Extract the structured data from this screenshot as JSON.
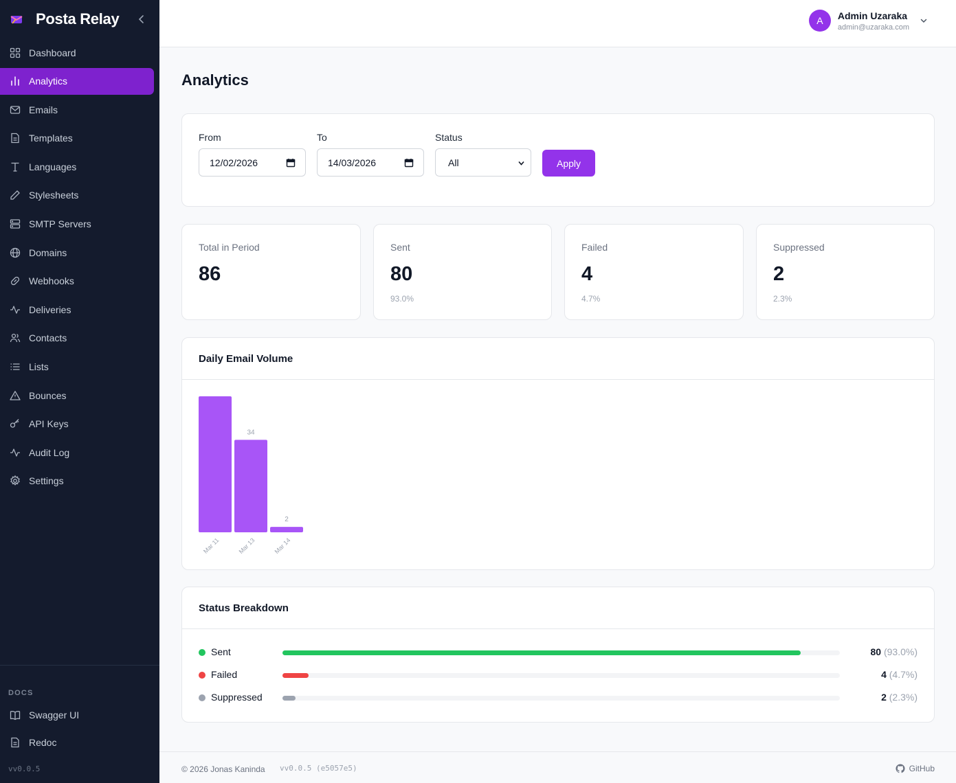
{
  "brand": {
    "name": "Posta Relay"
  },
  "sidebar": {
    "items": [
      {
        "label": "Dashboard",
        "icon": "grid-icon"
      },
      {
        "label": "Analytics",
        "icon": "bar-chart-icon",
        "active": true
      },
      {
        "label": "Emails",
        "icon": "mail-icon"
      },
      {
        "label": "Templates",
        "icon": "file-text-icon"
      },
      {
        "label": "Languages",
        "icon": "type-icon"
      },
      {
        "label": "Stylesheets",
        "icon": "pencil-icon"
      },
      {
        "label": "SMTP Servers",
        "icon": "server-icon"
      },
      {
        "label": "Domains",
        "icon": "globe-icon"
      },
      {
        "label": "Webhooks",
        "icon": "link-icon"
      },
      {
        "label": "Deliveries",
        "icon": "activity-icon"
      },
      {
        "label": "Contacts",
        "icon": "users-icon"
      },
      {
        "label": "Lists",
        "icon": "list-icon"
      },
      {
        "label": "Bounces",
        "icon": "alert-triangle-icon"
      },
      {
        "label": "API Keys",
        "icon": "key-icon"
      },
      {
        "label": "Audit Log",
        "icon": "activity-icon"
      },
      {
        "label": "Settings",
        "icon": "gear-icon"
      }
    ],
    "docs_label": "DOCS",
    "docs_items": [
      {
        "label": "Swagger UI",
        "icon": "book-open-icon"
      },
      {
        "label": "Redoc",
        "icon": "file-text-icon"
      }
    ],
    "version": "vv0.0.5"
  },
  "user": {
    "initial": "A",
    "name": "Admin Uzaraka",
    "email": "admin@uzaraka.com"
  },
  "page": {
    "title": "Analytics"
  },
  "filters": {
    "from_label": "From",
    "from_value": "12/02/2026",
    "to_label": "To",
    "to_value": "14/03/2026",
    "status_label": "Status",
    "status_value": "All",
    "apply_label": "Apply"
  },
  "stats": [
    {
      "label": "Total in Period",
      "value": "86",
      "sub": ""
    },
    {
      "label": "Sent",
      "value": "80",
      "sub": "93.0%"
    },
    {
      "label": "Failed",
      "value": "4",
      "sub": "4.7%"
    },
    {
      "label": "Suppressed",
      "value": "2",
      "sub": "2.3%"
    }
  ],
  "daily_volume": {
    "title": "Daily Email Volume"
  },
  "chart_data": {
    "type": "bar",
    "categories": [
      "Mar 11",
      "Mar 13",
      "Mar 14"
    ],
    "values": [
      50,
      34,
      2
    ],
    "data_labels": [
      "",
      "34",
      "2"
    ],
    "color": "#a855f7"
  },
  "status_breakdown": {
    "title": "Status Breakdown",
    "rows": [
      {
        "name": "Sent",
        "count": "80",
        "pct": "(93.0%)",
        "fraction": 0.93,
        "color": "#22c55e"
      },
      {
        "name": "Failed",
        "count": "4",
        "pct": "(4.7%)",
        "fraction": 0.047,
        "color": "#ef4444"
      },
      {
        "name": "Suppressed",
        "count": "2",
        "pct": "(2.3%)",
        "fraction": 0.023,
        "color": "#9ca3af"
      }
    ]
  },
  "footer": {
    "copyright": "© 2026 Jonas Kaninda",
    "version": "vv0.0.5 (e5057e5)",
    "github": "GitHub"
  },
  "colors": {
    "accent": "#9333ea",
    "sidebar_bg": "#141b2d",
    "active_item": "#7e22ce"
  }
}
